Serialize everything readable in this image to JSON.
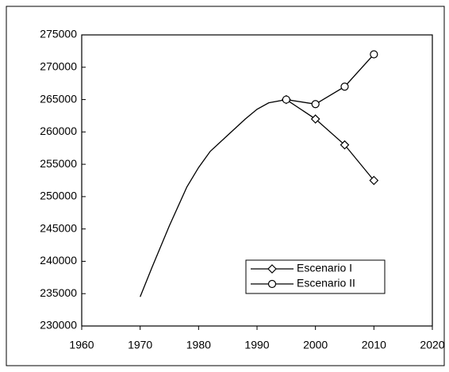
{
  "chart_data": {
    "type": "line",
    "series": [
      {
        "color": "#000000",
        "x": [
          1970,
          1972,
          1975,
          1978,
          1980,
          1982,
          1985,
          1988,
          1990,
          1992,
          1995
        ],
        "values": [
          234500,
          239000,
          245500,
          251500,
          254500,
          257000,
          259500,
          262000,
          263500,
          264500,
          265000
        ]
      },
      {
        "name": "Escenario I",
        "color": "#000000",
        "marker": "diamond",
        "x": [
          1995,
          2000,
          2005,
          2010
        ],
        "values": [
          265000,
          262000,
          258000,
          252500
        ]
      },
      {
        "name": "Escenario II",
        "color": "#000000",
        "marker": "circle",
        "x": [
          1995,
          2000,
          2005,
          2010
        ],
        "values": [
          265000,
          264300,
          267000,
          272000
        ]
      }
    ],
    "xlim": [
      1960,
      2020
    ],
    "xticks": [
      1960,
      1970,
      1980,
      1990,
      2000,
      2010,
      2020
    ],
    "ylim": [
      230000,
      275000
    ],
    "yticks": [
      230000,
      235000,
      240000,
      245000,
      250000,
      255000,
      260000,
      265000,
      270000,
      275000
    ],
    "grid": false,
    "legend": "lower right"
  }
}
